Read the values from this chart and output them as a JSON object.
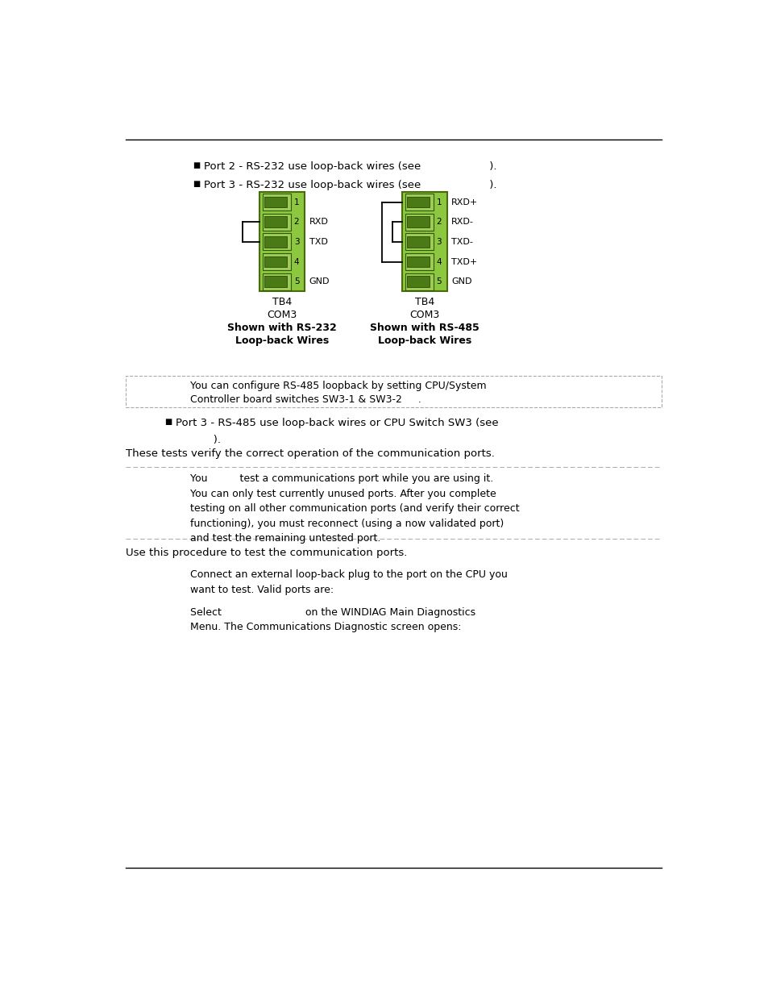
{
  "bg_color": "#ffffff",
  "text_color": "#000000",
  "green_fill": "#8dc63f",
  "green_dark": "#5a7a1a",
  "green_border": "#4a6a10",
  "page_width": 9.54,
  "page_height": 12.35,
  "bullet1": "Port 2 - RS-232 use loop-back wires (see                    ).",
  "bullet2": "Port 3 - RS-232 use loop-back wires (see                    ).",
  "tb4_left_labels": [
    "1",
    "2",
    "3",
    "4",
    "5"
  ],
  "tb4_left_signals": [
    "",
    "RXD",
    "TXD",
    "",
    "GND"
  ],
  "tb4_right_labels": [
    "1",
    "2",
    "3",
    "4",
    "5"
  ],
  "tb4_right_signals": [
    "RXD+",
    "RXD-",
    "TXD-",
    "TXD+",
    "GND"
  ],
  "caption_left_line1": "TB4",
  "caption_left_line2": "COM3",
  "caption_left_line3": "Shown with RS-232",
  "caption_left_line4": "Loop-back Wires",
  "caption_right_line1": "TB4",
  "caption_right_line2": "COM3",
  "caption_right_line3": "Shown with RS-485",
  "caption_right_line4": "Loop-back Wires",
  "note1_line1": "You can configure RS-485 loopback by setting CPU/System",
  "note1_line2": "Controller board switches SW3-1 & SW3-2     .",
  "bullet3_line1": "Port 3 - RS-485 use loop-back wires or CPU Switch SW3 (see",
  "bullet3_line2": "           ).",
  "verify_text": "These tests verify the correct operation of the communication ports.",
  "warning_line1": "You          test a communications port while you are using it.",
  "warning_line2": "You can only test currently unused ports. After you complete",
  "warning_line3": "testing on all other communication ports (and verify their correct",
  "warning_line4": "functioning), you must reconnect (using a now validated port)",
  "warning_line5": "and test the remaining untested port.",
  "procedure_text": "Use this procedure to test the communication ports.",
  "step1_line1": "Connect an external loop-back plug to the port on the CPU you",
  "step1_line2": "want to test. Valid ports are:",
  "step2_line1": "Select                          on the WINDIAG Main Diagnostics",
  "step2_line2": "Menu. The Communications Diagnostic screen opens:"
}
